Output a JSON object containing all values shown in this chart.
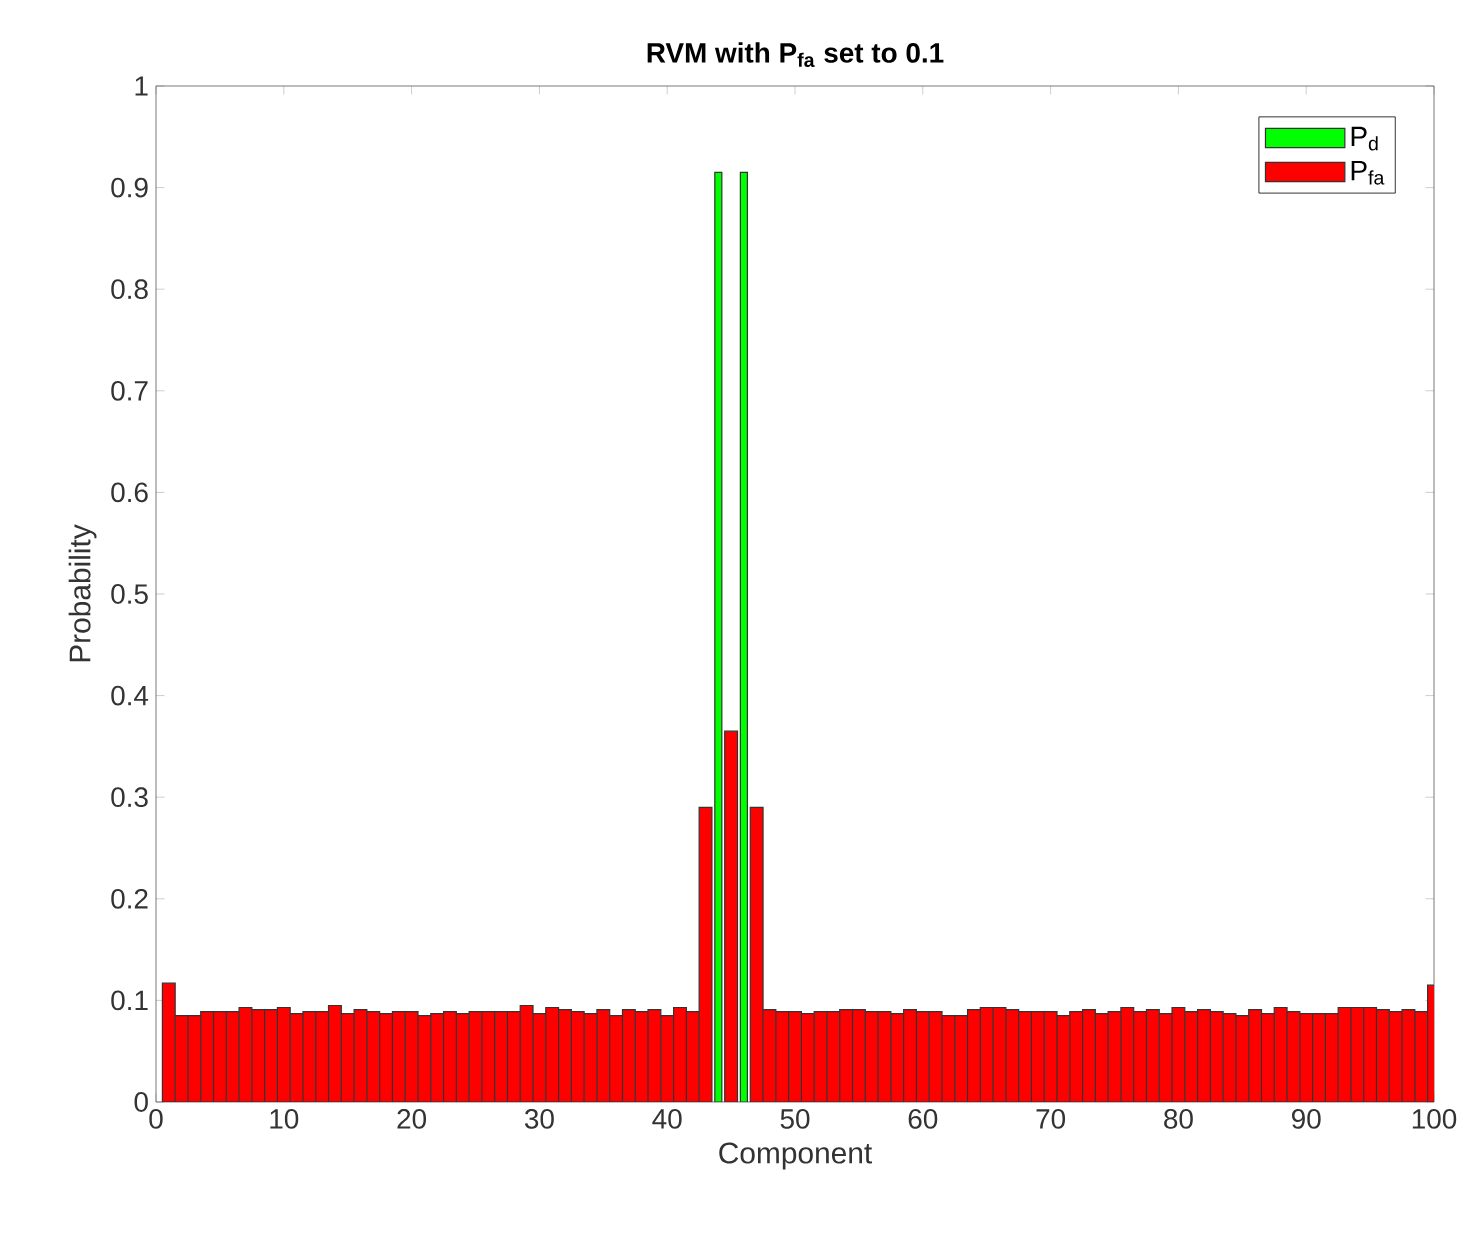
{
  "chart_data": {
    "type": "bar",
    "title": "RVM with P$_{fa}$ set to 0.1",
    "xlabel": "Component",
    "ylabel": "Probability",
    "x": [
      1,
      2,
      3,
      4,
      5,
      6,
      7,
      8,
      9,
      10,
      11,
      12,
      13,
      14,
      15,
      16,
      17,
      18,
      19,
      20,
      21,
      22,
      23,
      24,
      25,
      26,
      27,
      28,
      29,
      30,
      31,
      32,
      33,
      34,
      35,
      36,
      37,
      38,
      39,
      40,
      41,
      42,
      43,
      44,
      45,
      46,
      47,
      48,
      49,
      50,
      51,
      52,
      53,
      54,
      55,
      56,
      57,
      58,
      59,
      60,
      61,
      62,
      63,
      64,
      65,
      66,
      67,
      68,
      69,
      70,
      71,
      72,
      73,
      74,
      75,
      76,
      77,
      78,
      79,
      80,
      81,
      82,
      83,
      84,
      85,
      86,
      87,
      88,
      89,
      90,
      91,
      92,
      93,
      94,
      95,
      96,
      97,
      98,
      99,
      100
    ],
    "series": [
      {
        "name": "P$_{d}$",
        "color": "#00ff00",
        "values": [
          null,
          null,
          null,
          null,
          null,
          null,
          null,
          null,
          null,
          null,
          null,
          null,
          null,
          null,
          null,
          null,
          null,
          null,
          null,
          null,
          null,
          null,
          null,
          null,
          null,
          null,
          null,
          null,
          null,
          null,
          null,
          null,
          null,
          null,
          null,
          null,
          null,
          null,
          null,
          null,
          null,
          null,
          null,
          0.915,
          null,
          0.915,
          null,
          null,
          null,
          null,
          null,
          null,
          null,
          null,
          null,
          null,
          null,
          null,
          null,
          null,
          null,
          null,
          null,
          null,
          null,
          null,
          null,
          null,
          null,
          null,
          null,
          null,
          null,
          null,
          null,
          null,
          null,
          null,
          null,
          null,
          null,
          null,
          null,
          null,
          null,
          null,
          null,
          null,
          null,
          null,
          null,
          null,
          null,
          null,
          null,
          null,
          null,
          null,
          null,
          null
        ]
      },
      {
        "name": "P$_{fa}$",
        "color": "#ff0000",
        "values": [
          0.117,
          0.085,
          0.085,
          0.089,
          0.089,
          0.089,
          0.093,
          0.091,
          0.091,
          0.093,
          0.087,
          0.089,
          0.089,
          0.095,
          0.087,
          0.091,
          0.089,
          0.087,
          0.089,
          0.089,
          0.085,
          0.087,
          0.089,
          0.087,
          0.089,
          0.089,
          0.089,
          0.089,
          0.095,
          0.087,
          0.093,
          0.091,
          0.089,
          0.087,
          0.091,
          0.085,
          0.091,
          0.089,
          0.091,
          0.085,
          0.093,
          0.089,
          0.29,
          null,
          0.365,
          null,
          0.29,
          0.091,
          0.089,
          0.089,
          0.087,
          0.089,
          0.089,
          0.091,
          0.091,
          0.089,
          0.089,
          0.087,
          0.091,
          0.089,
          0.089,
          0.085,
          0.085,
          0.091,
          0.093,
          0.093,
          0.091,
          0.089,
          0.089,
          0.089,
          0.085,
          0.089,
          0.091,
          0.087,
          0.089,
          0.093,
          0.089,
          0.091,
          0.087,
          0.093,
          0.089,
          0.091,
          0.089,
          0.087,
          0.085,
          0.091,
          0.087,
          0.093,
          0.089,
          0.087,
          0.087,
          0.087,
          0.093,
          0.093,
          0.093,
          0.091,
          0.089,
          0.091,
          0.089,
          0.115
        ]
      }
    ],
    "xlim": [
      0,
      100
    ],
    "xticks": [
      0,
      10,
      20,
      30,
      40,
      50,
      60,
      70,
      80,
      90,
      100
    ],
    "ylim": [
      0,
      1
    ],
    "yticks": [
      0,
      0.1,
      0.2,
      0.3,
      0.4,
      0.5,
      0.6,
      0.7,
      0.8,
      0.9,
      1
    ],
    "legend": "top right",
    "grid": false
  }
}
